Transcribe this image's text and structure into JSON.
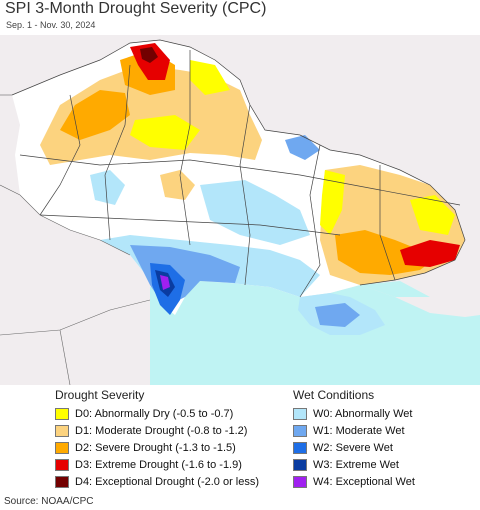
{
  "header": {
    "title": "SPI 3-Month Drought Severity (CPC)",
    "subtitle": "Sep. 1 - Nov. 30, 2024"
  },
  "map": {
    "sea_color": "#bff3f3",
    "land_color": "#f1edef",
    "ukraine_color": "#ffffff"
  },
  "legend": {
    "drought_title": "Drought Severity",
    "wet_title": "Wet Conditions",
    "drought": [
      {
        "label": "D0: Abnormally Dry (-0.5 to -0.7)",
        "color": "#ffff00"
      },
      {
        "label": "D1: Moderate Drought (-0.8 to -1.2)",
        "color": "#fcd37f"
      },
      {
        "label": "D2: Severe Drought (-1.3 to -1.5)",
        "color": "#ffaa00"
      },
      {
        "label": "D3: Extreme Drought (-1.6 to -1.9)",
        "color": "#e60000"
      },
      {
        "label": "D4: Exceptional Drought (-2.0 or less)",
        "color": "#730000"
      }
    ],
    "wet": [
      {
        "label": "W0: Abnormally Wet",
        "color": "#b3e6fa"
      },
      {
        "label": "W1: Moderate Wet",
        "color": "#6fa8f0"
      },
      {
        "label": "W2: Severe Wet",
        "color": "#1e6ee6"
      },
      {
        "label": "W3: Extreme Wet",
        "color": "#0a3ca0"
      },
      {
        "label": "W4: Exceptional Wet",
        "color": "#a020f0"
      }
    ]
  },
  "footer": {
    "source": "Source: NOAA/CPC"
  }
}
